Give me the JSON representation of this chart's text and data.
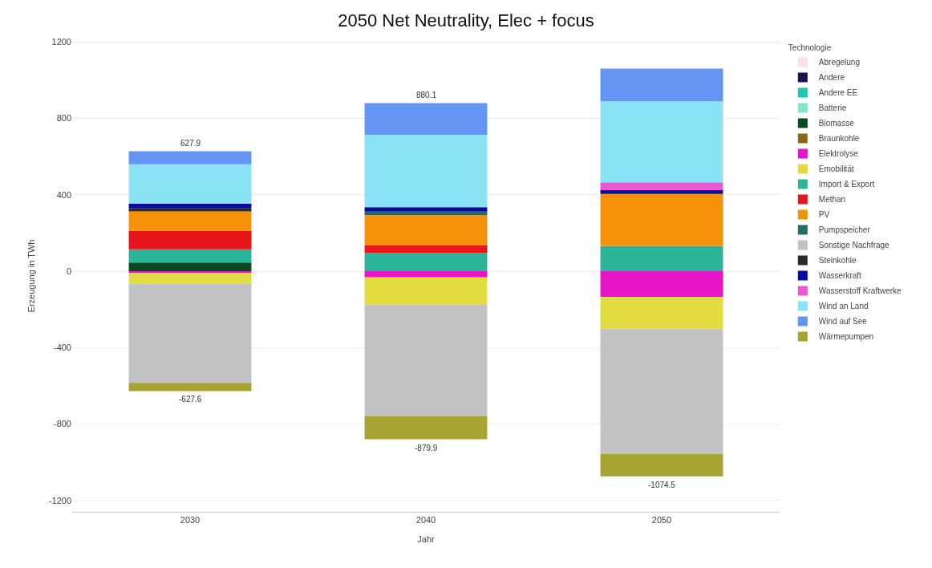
{
  "chart_data": {
    "type": "bar",
    "stacked": true,
    "title": "2050 Net Neutrality, Elec + focus",
    "xlabel": "Jahr",
    "ylabel": "Erzeugung in TWh",
    "legend_title": "Technologie",
    "categories": [
      "2030",
      "2040",
      "2050"
    ],
    "series": [
      {
        "name": "Abregelung",
        "color": "#f8e0e8",
        "values": [
          null,
          null,
          null
        ]
      },
      {
        "name": "Andere",
        "color": "#1a1450",
        "values": [
          null,
          null,
          null
        ]
      },
      {
        "name": "Andere EE",
        "color": "#1fc8b0",
        "values": [
          null,
          null,
          null
        ]
      },
      {
        "name": "Batterie",
        "color": "#80e8c8",
        "values": [
          null,
          null,
          null
        ]
      },
      {
        "name": "Biomasse",
        "color": "#0b4a1f",
        "values": [
          45,
          null,
          null
        ]
      },
      {
        "name": "Braunkohle",
        "color": "#8b6914",
        "values": [
          null,
          null,
          null
        ]
      },
      {
        "name": "Elektrolyse",
        "color": "#e815c8",
        "values": [
          -10,
          -32,
          -135
        ]
      },
      {
        "name": "Emobilität",
        "color": "#e2dc40",
        "values": [
          -55,
          -143,
          -168
        ]
      },
      {
        "name": "Import & Export",
        "color": "#2ab598",
        "values": [
          70,
          95,
          133
        ]
      },
      {
        "name": "Methan",
        "color": "#e8151a",
        "values": [
          96,
          40,
          null
        ]
      },
      {
        "name": "PV",
        "color": "#f5920a",
        "values": [
          102,
          158,
          272
        ]
      },
      {
        "name": "Pumpspeicher",
        "color": "#256b6b",
        "values": [
          null,
          19,
          null
        ]
      },
      {
        "name": "Sonstige Nachfrage",
        "color": "#c0c2c4",
        "values": [
          -519.6,
          -583,
          -654
        ]
      },
      {
        "name": "Steinkohle",
        "color": "#2a2a2a",
        "values": [
          16,
          null,
          null
        ]
      },
      {
        "name": "Wasserkraft",
        "color": "#0a0a9e",
        "values": [
          24,
          23,
          19
        ]
      },
      {
        "name": "Wasserstoff Kraftwerke",
        "color": "#e858d0",
        "values": [
          null,
          null,
          41
        ]
      },
      {
        "name": "Wind an Land",
        "color": "#8ae2f5",
        "values": [
          207,
          379,
          425
        ]
      },
      {
        "name": "Wind auf See",
        "color": "#6495f5",
        "values": [
          67.9,
          166.1,
          171
        ]
      },
      {
        "name": "Wärmepumpen",
        "color": "#a8a432",
        "values": [
          -43,
          -121.9,
          -117.5
        ]
      }
    ],
    "annotations": [
      {
        "text": "627.9",
        "x": "2030",
        "y": 627.9
      },
      {
        "text": "880.1",
        "x": "2040",
        "y": 880.1
      },
      {
        "text": "-627.6",
        "x": "2030",
        "y": -627.6
      },
      {
        "text": "-879.9",
        "x": "2040",
        "y": -879.9
      },
      {
        "text": "-1074.5",
        "x": "2050",
        "y": -1074.5
      }
    ],
    "ylim": [
      -1260,
      1210
    ],
    "yticks": [
      -1200,
      -800,
      -400,
      0,
      400,
      800,
      1200
    ],
    "grid": "y",
    "legend": "top right"
  }
}
